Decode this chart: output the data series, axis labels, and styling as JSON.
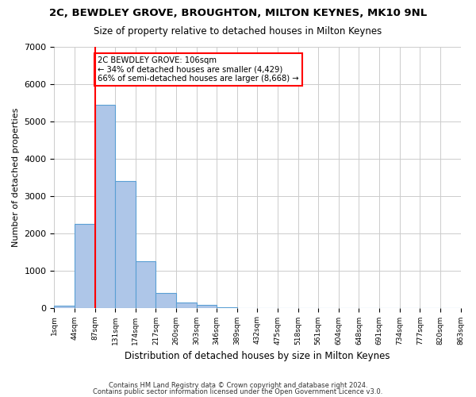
{
  "title1": "2C, BEWDLEY GROVE, BROUGHTON, MILTON KEYNES, MK10 9NL",
  "title2": "Size of property relative to detached houses in Milton Keynes",
  "xlabel": "Distribution of detached houses by size in Milton Keynes",
  "ylabel": "Number of detached properties",
  "footer1": "Contains HM Land Registry data © Crown copyright and database right 2024.",
  "footer2": "Contains public sector information licensed under the Open Government Licence v3.0.",
  "bin_labels": [
    "1sqm",
    "44sqm",
    "87sqm",
    "131sqm",
    "174sqm",
    "217sqm",
    "260sqm",
    "303sqm",
    "346sqm",
    "389sqm",
    "432sqm",
    "475sqm",
    "518sqm",
    "561sqm",
    "604sqm",
    "648sqm",
    "691sqm",
    "734sqm",
    "777sqm",
    "820sqm",
    "863sqm"
  ],
  "bar_heights": [
    50,
    2250,
    5450,
    3400,
    1250,
    400,
    130,
    80,
    20,
    0,
    0,
    0,
    0,
    0,
    0,
    0,
    0,
    0,
    0,
    0
  ],
  "bar_color": "#aec6e8",
  "bar_edge_color": "#5a9fd4",
  "property_bin_index": 2,
  "annotation_text": "2C BEWDLEY GROVE: 106sqm\n← 34% of detached houses are smaller (4,429)\n66% of semi-detached houses are larger (8,668) →",
  "annotation_box_color": "white",
  "annotation_box_edge_color": "red",
  "vline_color": "red",
  "ylim": [
    0,
    7000
  ],
  "yticks": [
    0,
    1000,
    2000,
    3000,
    4000,
    5000,
    6000,
    7000
  ],
  "background_color": "white",
  "grid_color": "#cccccc"
}
